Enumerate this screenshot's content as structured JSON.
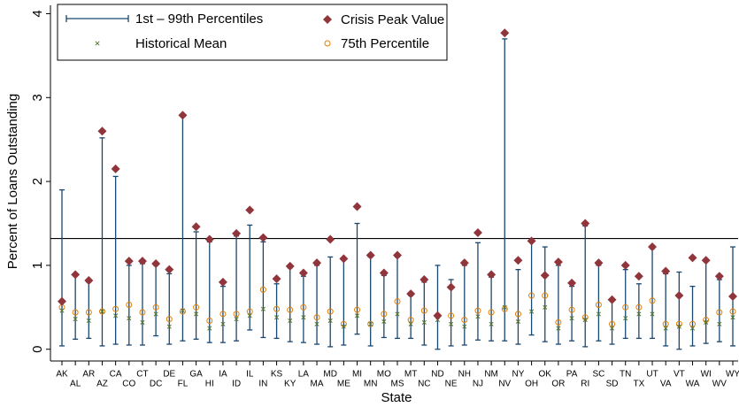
{
  "chart_data": {
    "type": "range-dot",
    "x_label": "State",
    "y_label": "Percent of Loans Outstanding",
    "ylim": [
      -0.14,
      4.1
    ],
    "yticks": [
      0,
      1,
      2,
      3,
      4
    ],
    "reference_line": 1.32,
    "categories": [
      "AK",
      "AL",
      "AR",
      "AZ",
      "CA",
      "CO",
      "CT",
      "DC",
      "DE",
      "FL",
      "GA",
      "HI",
      "IA",
      "ID",
      "IL",
      "IN",
      "KS",
      "KY",
      "LA",
      "MA",
      "MD",
      "ME",
      "MI",
      "MN",
      "MO",
      "MS",
      "MT",
      "NC",
      "ND",
      "NE",
      "NH",
      "NJ",
      "NM",
      "NV",
      "NY",
      "OH",
      "OK",
      "OR",
      "PA",
      "RI",
      "SC",
      "SD",
      "TN",
      "TX",
      "UT",
      "VA",
      "VT",
      "WA",
      "WI",
      "WV",
      "WY"
    ],
    "range": {
      "name": "1st – 99th Percentiles",
      "color": "#1a476f",
      "low": [
        0.04,
        0.12,
        0.13,
        0.04,
        0.06,
        0.05,
        0.05,
        0.16,
        0.06,
        0.1,
        0.12,
        0.08,
        0.08,
        0.1,
        0.23,
        0.14,
        0.13,
        0.09,
        0.08,
        0.06,
        0.03,
        0.05,
        0.18,
        0.04,
        0.14,
        0.13,
        0.13,
        0.05,
        0.0,
        0.04,
        0.05,
        0.11,
        0.1,
        0.1,
        0.06,
        0.17,
        0.09,
        0.06,
        0.1,
        0.03,
        0.1,
        0.06,
        0.13,
        0.13,
        0.13,
        0.04,
        0.0,
        0.04,
        0.07,
        0.09,
        0.04
      ],
      "high": [
        1.9,
        0.88,
        0.8,
        2.52,
        2.06,
        1.0,
        1.02,
        1.0,
        0.9,
        2.79,
        1.4,
        1.28,
        0.75,
        1.35,
        1.48,
        1.28,
        0.78,
        0.97,
        0.87,
        1.0,
        1.1,
        1.08,
        1.5,
        1.1,
        0.88,
        1.1,
        0.64,
        0.8,
        1.0,
        0.83,
        1.0,
        1.27,
        0.86,
        3.7,
        0.95,
        1.28,
        1.22,
        1.0,
        0.75,
        1.47,
        1.0,
        0.58,
        0.95,
        0.78,
        1.2,
        0.9,
        0.92,
        0.75,
        1.05,
        0.83,
        1.22
      ]
    },
    "series": [
      {
        "name": "Crisis Peak Value",
        "color": "#90353b",
        "marker": "diamond",
        "values": [
          0.57,
          0.89,
          0.82,
          2.6,
          2.15,
          1.05,
          1.05,
          1.02,
          0.95,
          2.79,
          1.46,
          1.31,
          0.8,
          1.38,
          1.66,
          1.33,
          0.84,
          0.99,
          0.91,
          1.03,
          1.31,
          1.08,
          1.7,
          1.12,
          0.91,
          1.12,
          0.66,
          0.83,
          0.4,
          0.74,
          1.03,
          1.39,
          0.89,
          3.77,
          1.06,
          1.29,
          0.88,
          1.04,
          0.79,
          1.5,
          1.03,
          0.59,
          1.0,
          0.87,
          1.22,
          0.93,
          0.64,
          1.09,
          1.06,
          0.87,
          0.63
        ]
      },
      {
        "name": "Historical Mean",
        "color": "#55752f",
        "marker": "x",
        "values": [
          0.46,
          0.36,
          0.34,
          0.45,
          0.4,
          0.37,
          0.32,
          0.42,
          0.27,
          0.46,
          0.42,
          0.25,
          0.3,
          0.36,
          0.4,
          0.48,
          0.38,
          0.34,
          0.38,
          0.3,
          0.34,
          0.27,
          0.4,
          0.3,
          0.33,
          0.42,
          0.3,
          0.32,
          0.35,
          0.3,
          0.27,
          0.39,
          0.3,
          0.5,
          0.33,
          0.45,
          0.5,
          0.25,
          0.37,
          0.35,
          0.42,
          0.25,
          0.37,
          0.42,
          0.42,
          0.25,
          0.27,
          0.25,
          0.32,
          0.3,
          0.38
        ]
      },
      {
        "name": "75th Percentile",
        "color": "#e37e00",
        "marker": "circle",
        "values": [
          0.5,
          0.44,
          0.44,
          0.45,
          0.48,
          0.53,
          0.44,
          0.5,
          0.36,
          0.45,
          0.5,
          0.34,
          0.42,
          0.42,
          0.45,
          0.71,
          0.48,
          0.47,
          0.5,
          0.38,
          0.45,
          0.3,
          0.47,
          0.3,
          0.42,
          0.57,
          0.35,
          0.46,
          0.4,
          0.4,
          0.35,
          0.46,
          0.44,
          0.48,
          0.42,
          0.64,
          0.64,
          0.32,
          0.47,
          0.38,
          0.53,
          0.3,
          0.5,
          0.5,
          0.58,
          0.3,
          0.3,
          0.3,
          0.35,
          0.44,
          0.45
        ]
      }
    ]
  }
}
